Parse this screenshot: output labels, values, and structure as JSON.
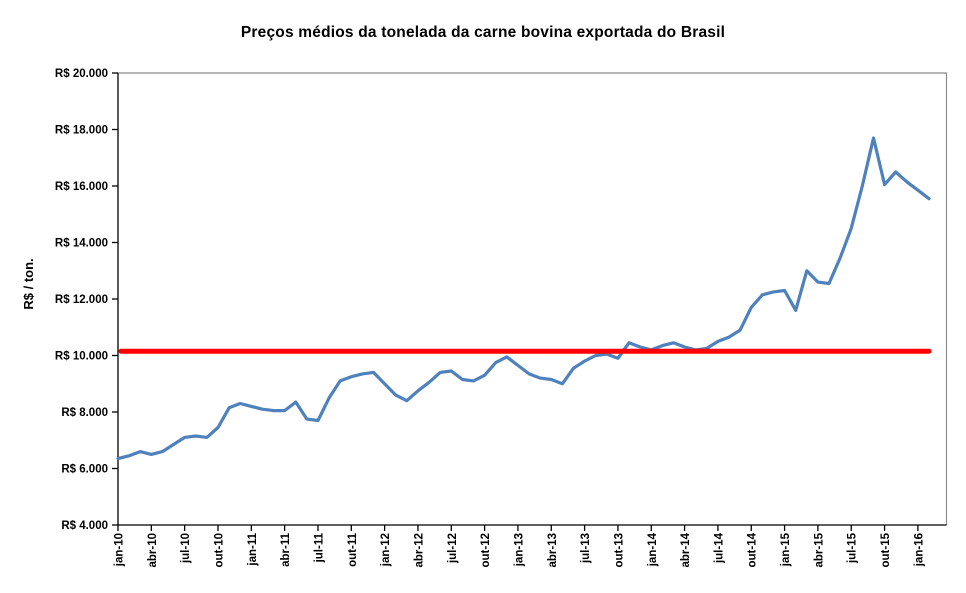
{
  "title": "Preços médios da tonelada da carne bovina exportada do Brasil",
  "chart_data": {
    "type": "line",
    "title": "Preços médios da tonelada da carne bovina exportada do Brasil",
    "xlabel": "",
    "ylabel": "R$ / ton.",
    "ylim": [
      4000,
      20000
    ],
    "ytick_step": 2000,
    "ytick_values": [
      20000,
      18000,
      16000,
      14000,
      12000,
      10000,
      8000,
      6000,
      4000
    ],
    "ytick_labels": [
      "R$ 20.000",
      "R$ 18.000",
      "R$ 16.000",
      "R$ 14.000",
      "R$ 12.000",
      "R$ 10.000",
      "R$ 8.000",
      "R$ 6.000",
      "R$ 4.000"
    ],
    "xtick_labels": [
      "jan-10",
      "abr-10",
      "jul-10",
      "out-10",
      "jan-11",
      "abr-11",
      "jul-11",
      "out-11",
      "jan-12",
      "abr-12",
      "jul-12",
      "out-12",
      "jan-13",
      "abr-13",
      "jul-13",
      "out-13",
      "jan-14",
      "abr-14",
      "jul-14",
      "out-14",
      "jan-15",
      "abr-15",
      "jul-15",
      "out-15",
      "jan-16"
    ],
    "grid": false,
    "legend": false,
    "x": [
      "jan-10",
      "fev-10",
      "mar-10",
      "abr-10",
      "mai-10",
      "jun-10",
      "jul-10",
      "ago-10",
      "set-10",
      "out-10",
      "nov-10",
      "dez-10",
      "jan-11",
      "fev-11",
      "mar-11",
      "abr-11",
      "mai-11",
      "jun-11",
      "jul-11",
      "ago-11",
      "set-11",
      "out-11",
      "nov-11",
      "dez-11",
      "jan-12",
      "fev-12",
      "mar-12",
      "abr-12",
      "mai-12",
      "jun-12",
      "jul-12",
      "ago-12",
      "set-12",
      "out-12",
      "nov-12",
      "dez-12",
      "jan-13",
      "fev-13",
      "mar-13",
      "abr-13",
      "mai-13",
      "jun-13",
      "jul-13",
      "ago-13",
      "set-13",
      "out-13",
      "nov-13",
      "dez-13",
      "jan-14",
      "fev-14",
      "mar-14",
      "abr-14",
      "mai-14",
      "jun-14",
      "jul-14",
      "ago-14",
      "set-14",
      "out-14",
      "nov-14",
      "dez-14",
      "jan-15",
      "fev-15",
      "mar-15",
      "abr-15",
      "mai-15",
      "jun-15",
      "jul-15",
      "ago-15",
      "set-15",
      "out-15",
      "nov-15",
      "dez-15",
      "jan-16",
      "fev-16"
    ],
    "series": [
      {
        "color": "#4F81BD",
        "stroke_width": 3.2,
        "values": [
          6350,
          6450,
          6600,
          6500,
          6600,
          6850,
          7100,
          7150,
          7100,
          7450,
          8150,
          8300,
          8200,
          8100,
          8050,
          8050,
          8350,
          7750,
          7700,
          8500,
          9100,
          9250,
          9350,
          9400,
          9000,
          8600,
          8400,
          8750,
          9050,
          9400,
          9450,
          9150,
          9100,
          9300,
          9750,
          9950,
          9650,
          9350,
          9200,
          9150,
          9000,
          9550,
          9800,
          10000,
          10050,
          9900,
          10450,
          10300,
          10200,
          10350,
          10450,
          10300,
          10200,
          10250,
          10500,
          10650,
          10900,
          11700,
          12150,
          12250,
          12300,
          11600,
          13000,
          12600,
          12550,
          13450,
          14500,
          16000,
          17700,
          16050,
          16500,
          16150,
          15850,
          15550
        ]
      }
    ],
    "reference_line": {
      "value": 10150,
      "color": "#FF0000",
      "stroke_width": 5
    }
  },
  "colors": {
    "line_blue": "#4F81BD",
    "line_red": "#FF0000",
    "axis_black": "#000000",
    "plot_border_gray": "#8C8C8C",
    "background": "#FFFFFF"
  }
}
